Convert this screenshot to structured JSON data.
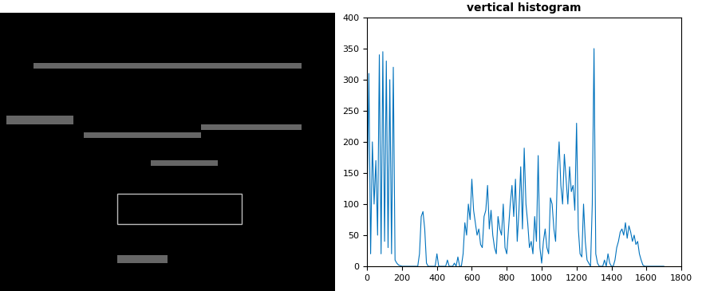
{
  "chart_data": {
    "type": "line",
    "title": "vertical histogram",
    "series": [
      {
        "color": "#0072bd",
        "x": [
          0,
          10,
          20,
          30,
          40,
          50,
          60,
          70,
          80,
          90,
          100,
          110,
          120,
          130,
          140,
          150,
          160,
          170,
          180,
          190,
          200,
          210,
          220,
          230,
          240,
          250,
          260,
          270,
          280,
          290,
          300,
          310,
          320,
          330,
          340,
          350,
          360,
          370,
          380,
          390,
          400,
          410,
          420,
          430,
          440,
          450,
          460,
          470,
          480,
          490,
          500,
          510,
          520,
          530,
          540,
          550,
          560,
          570,
          580,
          590,
          600,
          610,
          620,
          630,
          640,
          650,
          660,
          670,
          680,
          690,
          700,
          710,
          720,
          730,
          740,
          750,
          760,
          770,
          780,
          790,
          800,
          810,
          820,
          830,
          840,
          850,
          860,
          870,
          880,
          890,
          900,
          910,
          920,
          930,
          940,
          950,
          960,
          970,
          980,
          990,
          1000,
          1010,
          1020,
          1030,
          1040,
          1050,
          1060,
          1070,
          1080,
          1090,
          1100,
          1110,
          1120,
          1130,
          1140,
          1150,
          1160,
          1170,
          1180,
          1190,
          1200,
          1210,
          1220,
          1230,
          1240,
          1250,
          1260,
          1270,
          1280,
          1290,
          1300,
          1310,
          1320,
          1330,
          1340,
          1350,
          1360,
          1370,
          1380,
          1390,
          1400,
          1410,
          1420,
          1430,
          1440,
          1450,
          1460,
          1470,
          1480,
          1490,
          1500,
          1510,
          1520,
          1530,
          1540,
          1550,
          1560,
          1570,
          1580,
          1590,
          1600,
          1610,
          1620,
          1630,
          1640,
          1650,
          1660,
          1670,
          1680,
          1690,
          1700
        ],
        "values": [
          100,
          310,
          20,
          200,
          100,
          170,
          50,
          340,
          20,
          345,
          40,
          330,
          30,
          300,
          20,
          320,
          10,
          5,
          2,
          1,
          0,
          0,
          0,
          0,
          0,
          0,
          0,
          0,
          0,
          0,
          20,
          80,
          88,
          60,
          5,
          0,
          0,
          0,
          0,
          0,
          20,
          0,
          0,
          0,
          0,
          0,
          10,
          0,
          0,
          0,
          5,
          0,
          15,
          0,
          0,
          20,
          70,
          50,
          100,
          75,
          140,
          90,
          70,
          50,
          60,
          35,
          30,
          80,
          90,
          130,
          60,
          90,
          50,
          30,
          20,
          80,
          60,
          50,
          100,
          30,
          20,
          60,
          100,
          130,
          80,
          140,
          40,
          90,
          160,
          60,
          190,
          100,
          70,
          30,
          40,
          20,
          80,
          40,
          178,
          30,
          5,
          40,
          60,
          30,
          20,
          110,
          100,
          60,
          40,
          150,
          200,
          130,
          100,
          180,
          140,
          100,
          160,
          120,
          130,
          90,
          230,
          60,
          20,
          15,
          100,
          40,
          10,
          5,
          0,
          100,
          350,
          20,
          5,
          0,
          0,
          0,
          10,
          0,
          20,
          5,
          0,
          0,
          10,
          30,
          40,
          55,
          60,
          50,
          70,
          45,
          65,
          55,
          40,
          50,
          35,
          40,
          20,
          10,
          2,
          0,
          0,
          0,
          0,
          0,
          0,
          0,
          0,
          0,
          0,
          0,
          0
        ]
      },
      {
        "color": "#edb120",
        "x": [
          0,
          1800
        ],
        "values": [
          0,
          0
        ]
      }
    ],
    "xlim": [
      0,
      1800
    ],
    "xticks": [
      0,
      200,
      400,
      600,
      800,
      1000,
      1200,
      1400,
      1600,
      1800
    ],
    "ylim": [
      0,
      400
    ],
    "yticks": [
      0,
      50,
      100,
      150,
      200,
      250,
      300,
      350,
      400
    ],
    "grid": false
  }
}
